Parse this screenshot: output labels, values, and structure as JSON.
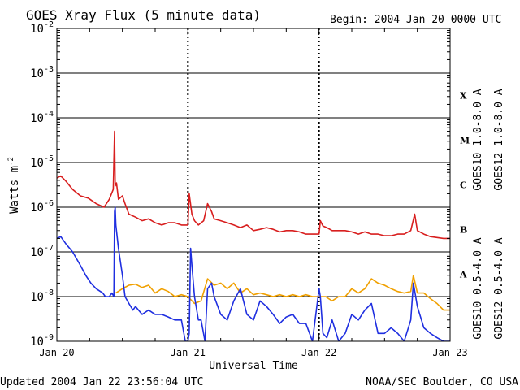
{
  "header": {
    "title": "GOES Xray Flux (5 minute data)",
    "begin": "Begin:  2004 Jan 20 0000 UTC"
  },
  "footer": {
    "updated": "Updated 2004 Jan 22 23:56:04 UTC",
    "credit": "NOAA/SEC Boulder, CO USA"
  },
  "colors": {
    "goes10_long": "#7a1fa2",
    "goes12_long": "#d81e1e",
    "goes10_short": "#f0a000",
    "goes12_short": "#1f2fe0",
    "grid": "#000000"
  },
  "chart_data": {
    "type": "line",
    "xlabel": "Universal Time",
    "ylabel": "Watts m",
    "ylabel_superscript": "-2",
    "x_ticks": [
      "Jan 20",
      "Jan 21",
      "Jan 22",
      "Jan 23"
    ],
    "xlim_days": [
      0,
      3
    ],
    "y_scale": "log",
    "ylim": [
      1e-09,
      0.01
    ],
    "y_ticks": [
      {
        "base": "10",
        "exp": "-9"
      },
      {
        "base": "10",
        "exp": "-8"
      },
      {
        "base": "10",
        "exp": "-7"
      },
      {
        "base": "10",
        "exp": "-6"
      },
      {
        "base": "10",
        "exp": "-5"
      },
      {
        "base": "10",
        "exp": "-4"
      },
      {
        "base": "10",
        "exp": "-3"
      },
      {
        "base": "10",
        "exp": "-2"
      }
    ],
    "flare_classes": [
      {
        "label": "X",
        "low": 0.0001,
        "high": 0.001
      },
      {
        "label": "M",
        "low": 1e-05,
        "high": 0.0001
      },
      {
        "label": "C",
        "low": 1e-06,
        "high": 1e-05
      },
      {
        "label": "B",
        "low": 1e-07,
        "high": 1e-06
      },
      {
        "label": "A",
        "low": 1e-08,
        "high": 1e-07
      }
    ],
    "legend": [
      {
        "name": "GOES10 1.0-8.0 A",
        "color": "#7a1fa2"
      },
      {
        "name": "GOES12 1.0-8.0 A",
        "color": "#d81e1e"
      },
      {
        "name": "GOES10 0.5-4.0 A",
        "color": "#f0a000"
      },
      {
        "name": "GOES12 0.5-4.0 A",
        "color": "#1f2fe0"
      }
    ],
    "legend_placement": "right",
    "grid": true,
    "series": [
      {
        "name": "GOES12 1.0-8.0 A",
        "color": "#d81e1e",
        "x": [
          0,
          0.03,
          0.07,
          0.12,
          0.18,
          0.24,
          0.3,
          0.36,
          0.4,
          0.43,
          0.44,
          0.445,
          0.455,
          0.47,
          0.5,
          0.52,
          0.55,
          0.6,
          0.65,
          0.7,
          0.75,
          0.8,
          0.85,
          0.9,
          0.95,
          1.0,
          1.01,
          1.015,
          1.03,
          1.05,
          1.08,
          1.12,
          1.15,
          1.18,
          1.2,
          1.25,
          1.3,
          1.35,
          1.4,
          1.45,
          1.5,
          1.55,
          1.6,
          1.65,
          1.7,
          1.75,
          1.8,
          1.85,
          1.9,
          1.95,
          2.0,
          2.01,
          2.03,
          2.06,
          2.1,
          2.15,
          2.2,
          2.25,
          2.3,
          2.35,
          2.4,
          2.45,
          2.5,
          2.55,
          2.6,
          2.65,
          2.7,
          2.73,
          2.75,
          2.8,
          2.85,
          2.9,
          2.95,
          3.0
        ],
        "values": [
          4.5e-06,
          5e-06,
          3.8e-06,
          2.5e-06,
          1.8e-06,
          1.6e-06,
          1.2e-06,
          1e-06,
          1.5e-06,
          2.5e-06,
          5e-05,
          3e-06,
          3.5e-06,
          1.5e-06,
          1.8e-06,
          1.2e-06,
          7e-07,
          6e-07,
          5e-07,
          5.5e-07,
          4.5e-07,
          4e-07,
          4.5e-07,
          4.5e-07,
          4e-07,
          4e-07,
          2e-06,
          1.5e-06,
          7e-07,
          5e-07,
          4e-07,
          5e-07,
          1.2e-06,
          8e-07,
          5.5e-07,
          5e-07,
          4.5e-07,
          4e-07,
          3.5e-07,
          4e-07,
          3e-07,
          3.2e-07,
          3.5e-07,
          3.2e-07,
          2.8e-07,
          3e-07,
          3e-07,
          2.8e-07,
          2.5e-07,
          2.5e-07,
          2.5e-07,
          5e-07,
          3.8e-07,
          3.5e-07,
          3e-07,
          3e-07,
          3e-07,
          2.8e-07,
          2.5e-07,
          2.8e-07,
          2.5e-07,
          2.5e-07,
          2.3e-07,
          2.3e-07,
          2.5e-07,
          2.5e-07,
          3e-07,
          7e-07,
          3e-07,
          2.5e-07,
          2.2e-07,
          2.1e-07,
          2e-07,
          2e-07
        ]
      },
      {
        "name": "GOES10 0.5-4.0 A",
        "color": "#f0a000",
        "x": [
          0.45,
          0.5,
          0.55,
          0.6,
          0.65,
          0.7,
          0.75,
          0.8,
          0.85,
          0.9,
          0.95,
          1.0,
          1.05,
          1.1,
          1.15,
          1.2,
          1.25,
          1.3,
          1.35,
          1.4,
          1.45,
          1.5,
          1.55,
          1.6,
          1.65,
          1.7,
          1.75,
          1.8,
          1.85,
          1.9,
          1.95,
          2.0,
          2.05,
          2.1,
          2.15,
          2.2,
          2.25,
          2.3,
          2.35,
          2.4,
          2.45,
          2.5,
          2.55,
          2.6,
          2.65,
          2.7,
          2.72,
          2.75,
          2.8,
          2.85,
          2.9,
          2.95,
          3.0
        ],
        "values": [
          1.2e-08,
          1.5e-08,
          1.8e-08,
          1.9e-08,
          1.6e-08,
          1.8e-08,
          1.2e-08,
          1.5e-08,
          1.3e-08,
          1e-08,
          1.1e-08,
          1e-08,
          7e-09,
          8e-09,
          2.5e-08,
          1.8e-08,
          2e-08,
          1.5e-08,
          2e-08,
          1.2e-08,
          1.5e-08,
          1.1e-08,
          1.2e-08,
          1.1e-08,
          1e-08,
          1.1e-08,
          1e-08,
          1.1e-08,
          1e-08,
          1.1e-08,
          1e-08,
          1e-08,
          1e-08,
          8e-09,
          1e-08,
          1e-08,
          1.5e-08,
          1.2e-08,
          1.5e-08,
          2.5e-08,
          2e-08,
          1.8e-08,
          1.5e-08,
          1.3e-08,
          1.2e-08,
          1.3e-08,
          3e-08,
          1.2e-08,
          1.2e-08,
          9e-09,
          7e-09,
          5e-09,
          5e-09
        ]
      },
      {
        "name": "GOES12 0.5-4.0 A",
        "color": "#1f2fe0",
        "x": [
          0,
          0.03,
          0.07,
          0.12,
          0.18,
          0.22,
          0.26,
          0.3,
          0.35,
          0.37,
          0.4,
          0.42,
          0.435,
          0.44,
          0.445,
          0.45,
          0.47,
          0.5,
          0.52,
          0.55,
          0.58,
          0.6,
          0.65,
          0.7,
          0.75,
          0.8,
          0.85,
          0.9,
          0.95,
          0.98,
          1.0,
          1.01,
          1.02,
          1.03,
          1.05,
          1.08,
          1.1,
          1.13,
          1.15,
          1.18,
          1.2,
          1.25,
          1.3,
          1.35,
          1.4,
          1.45,
          1.5,
          1.55,
          1.6,
          1.65,
          1.7,
          1.75,
          1.8,
          1.85,
          1.9,
          1.95,
          2.0,
          2.01,
          2.03,
          2.06,
          2.1,
          2.15,
          2.2,
          2.25,
          2.3,
          2.35,
          2.4,
          2.45,
          2.5,
          2.55,
          2.6,
          2.65,
          2.7,
          2.72,
          2.75,
          2.8,
          2.85,
          2.9,
          2.95,
          3.0
        ],
        "values": [
          2e-07,
          2.2e-07,
          1.5e-07,
          1e-07,
          5e-08,
          3e-08,
          2e-08,
          1.5e-08,
          1.2e-08,
          1e-08,
          1e-08,
          1.2e-08,
          1e-08,
          8e-07,
          1e-06,
          4e-07,
          1.2e-07,
          3e-08,
          1e-08,
          7e-09,
          5e-09,
          6e-09,
          4e-09,
          5e-09,
          4e-09,
          4e-09,
          3.5e-09,
          3e-09,
          3e-09,
          1e-09,
          1e-09,
          1.5e-09,
          1.2e-07,
          5e-08,
          1e-08,
          3e-09,
          3e-09,
          1e-09,
          1.5e-08,
          2e-08,
          1e-08,
          4e-09,
          3e-09,
          8e-09,
          1.5e-08,
          4e-09,
          3e-09,
          8e-09,
          6e-09,
          4e-09,
          2.5e-09,
          3.5e-09,
          4e-09,
          2.5e-09,
          2.5e-09,
          1e-09,
          1.5e-08,
          1e-08,
          1.5e-09,
          1.2e-09,
          3e-09,
          1e-09,
          1.5e-09,
          4e-09,
          3e-09,
          5e-09,
          7e-09,
          1.5e-09,
          1.5e-09,
          2e-09,
          1.5e-09,
          1e-09,
          3e-09,
          2e-08,
          6e-09,
          2e-09,
          1.5e-09,
          1.2e-09,
          1e-09,
          1e-09
        ]
      }
    ]
  }
}
